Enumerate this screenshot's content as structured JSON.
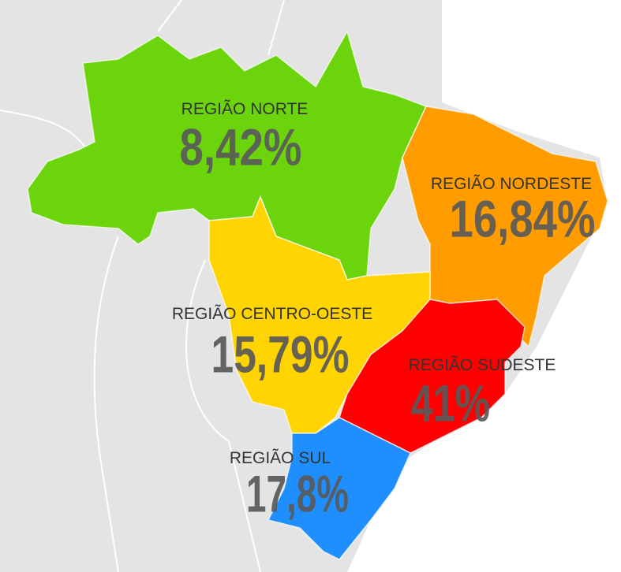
{
  "regions": [
    {
      "name": "REGIÃO NORTE",
      "value": "8,42%",
      "color": "#6cd40c"
    },
    {
      "name": "REGIÃO NORDESTE",
      "value": "16,84%",
      "color": "#ff9c00"
    },
    {
      "name": "REGIÃO CENTRO-OESTE",
      "value": "15,79%",
      "color": "#ffd400"
    },
    {
      "name": "REGIÃO SUDESTE",
      "value": "41%",
      "color": "#ff0000"
    },
    {
      "name": "REGIÃO SUL",
      "value": "17,8%",
      "color": "#1f8fff"
    }
  ]
}
